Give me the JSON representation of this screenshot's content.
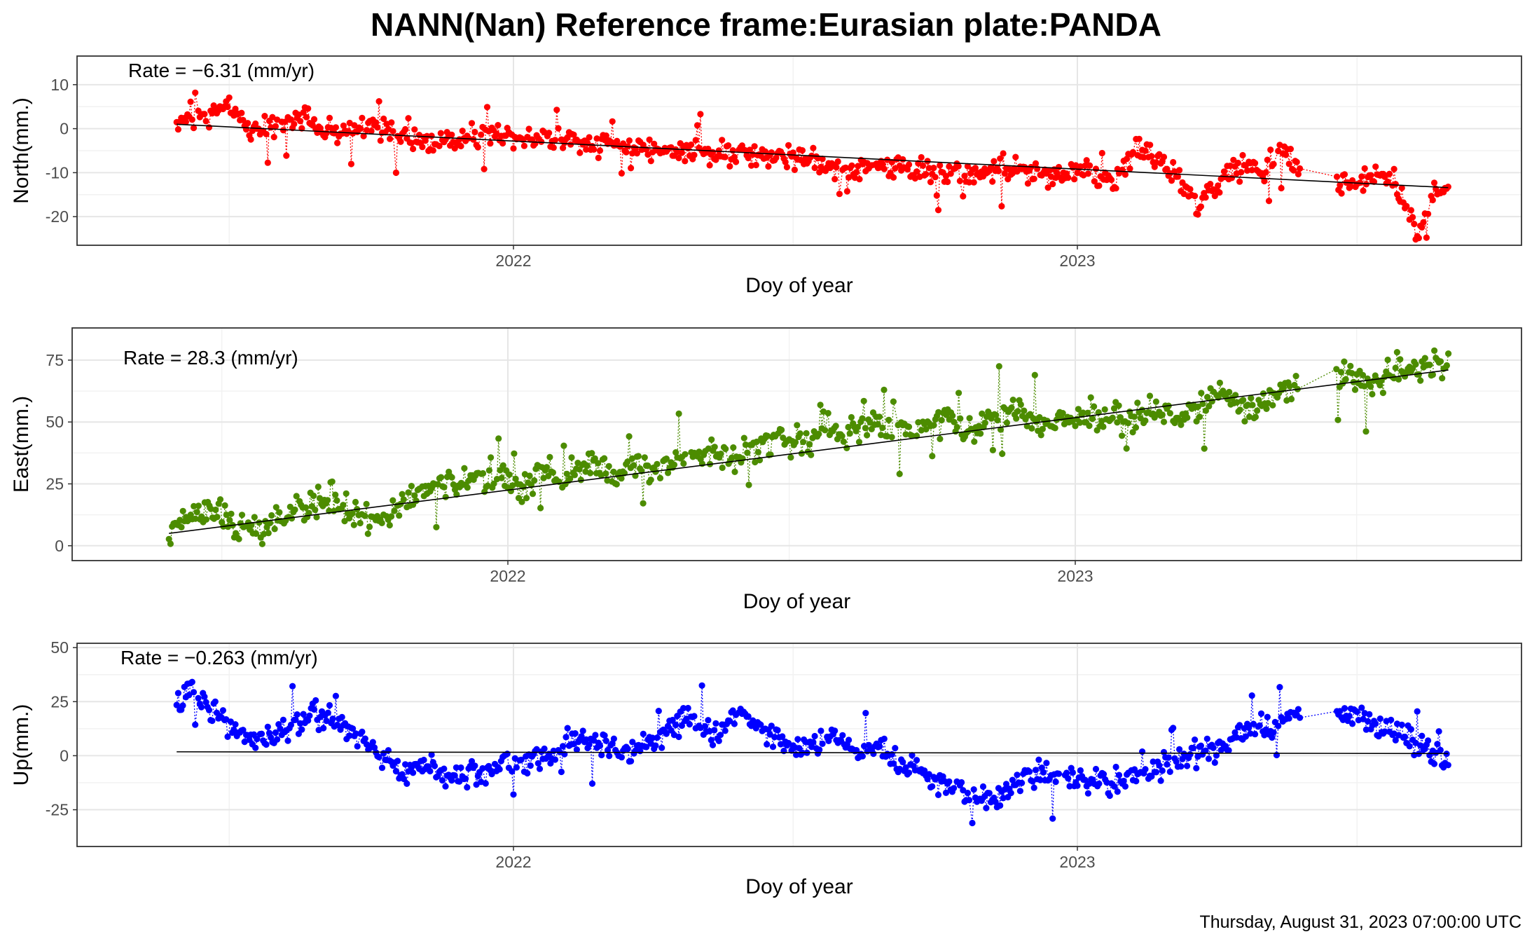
{
  "title": "NANN(Nan) Reference frame:Eurasian plate:PANDA",
  "footer": "Thursday, August 31, 2023 07:00:00 UTC",
  "chart_data": [
    {
      "type": "line",
      "component": "north",
      "ylabel": "North(mm.)",
      "xlabel": "Doy of year",
      "x_tick_labels": [
        "2022",
        "2023"
      ],
      "y_ticks": [
        -20,
        -10,
        0,
        10
      ],
      "ylim": [
        -26.5,
        16.5
      ],
      "rate_label": "Rate = −6.31 (mm/yr)",
      "rate_mm_per_yr": -6.31,
      "point_color": "#ff0000",
      "trend": [
        {
          "x": "2021-05-28",
          "y": 1.0
        },
        {
          "x": "2023-08-29",
          "y": -13.4
        }
      ],
      "series": [
        {
          "values": [
            {
              "x": "2021-05-28",
              "y": 2
            },
            {
              "x": "2021-06-15",
              "y": 3
            },
            {
              "x": "2021-06-28",
              "y": 5
            },
            {
              "x": "2021-07-15",
              "y": 0
            },
            {
              "x": "2021-08-01",
              "y": 1
            },
            {
              "x": "2021-08-20",
              "y": 2
            },
            {
              "x": "2021-09-10",
              "y": -1
            },
            {
              "x": "2021-10-01",
              "y": 1
            },
            {
              "x": "2021-10-20",
              "y": -2
            },
            {
              "x": "2021-11-10",
              "y": -3
            },
            {
              "x": "2021-12-01",
              "y": -2
            },
            {
              "x": "2021-12-25",
              "y": -1
            },
            {
              "x": "2022-01-20",
              "y": -2
            },
            {
              "x": "2022-02-20",
              "y": -3
            },
            {
              "x": "2022-03-15",
              "y": -4
            },
            {
              "x": "2022-04-10",
              "y": -5
            },
            {
              "x": "2022-05-10",
              "y": -5
            },
            {
              "x": "2022-06-10",
              "y": -6
            },
            {
              "x": "2022-07-10",
              "y": -7
            },
            {
              "x": "2022-08-08",
              "y": -10
            },
            {
              "x": "2022-08-20",
              "y": -8
            },
            {
              "x": "2022-09-20",
              "y": -9
            },
            {
              "x": "2022-10-18",
              "y": -10
            },
            {
              "x": "2022-11-15",
              "y": -9
            },
            {
              "x": "2022-12-10",
              "y": -11
            },
            {
              "x": "2023-01-05",
              "y": -9
            },
            {
              "x": "2023-01-25",
              "y": -12
            },
            {
              "x": "2023-02-10",
              "y": -4
            },
            {
              "x": "2023-03-05",
              "y": -10
            },
            {
              "x": "2023-03-20",
              "y": -18
            },
            {
              "x": "2023-04-10",
              "y": -9
            },
            {
              "x": "2023-05-01",
              "y": -10
            },
            {
              "x": "2023-05-12",
              "y": -5
            },
            {
              "x": "2023-05-25",
              "y": -9
            },
            {
              "x": "2023-06-25",
              "y": -13
            },
            {
              "x": "2023-07-10",
              "y": -11
            },
            {
              "x": "2023-07-25",
              "y": -12
            },
            {
              "x": "2023-08-10",
              "y": -25
            },
            {
              "x": "2023-08-20",
              "y": -13
            },
            {
              "x": "2023-08-29",
              "y": -14
            }
          ]
        }
      ]
    },
    {
      "type": "line",
      "component": "east",
      "ylabel": "East(mm.)",
      "xlabel": "Doy of year",
      "x_tick_labels": [
        "2022",
        "2023"
      ],
      "y_ticks": [
        0,
        25,
        50,
        75
      ],
      "ylim": [
        -6,
        88
      ],
      "rate_label": "Rate = 28.3 (mm/yr)",
      "rate_mm_per_yr": 28.3,
      "point_color": "#4c8c00",
      "trend": [
        {
          "x": "2021-05-28",
          "y": 5.0
        },
        {
          "x": "2023-08-29",
          "y": 71.0
        }
      ],
      "series": [
        {
          "values": [
            {
              "x": "2021-05-28",
              "y": 5
            },
            {
              "x": "2021-06-10",
              "y": 12
            },
            {
              "x": "2021-06-25",
              "y": 15
            },
            {
              "x": "2021-07-10",
              "y": 8
            },
            {
              "x": "2021-07-25",
              "y": 5
            },
            {
              "x": "2021-08-10",
              "y": 12
            },
            {
              "x": "2021-08-25",
              "y": 15
            },
            {
              "x": "2021-09-10",
              "y": 20
            },
            {
              "x": "2021-09-25",
              "y": 12
            },
            {
              "x": "2021-10-10",
              "y": 10
            },
            {
              "x": "2021-10-25",
              "y": 18
            },
            {
              "x": "2021-11-10",
              "y": 22
            },
            {
              "x": "2021-11-25",
              "y": 26
            },
            {
              "x": "2021-12-10",
              "y": 25
            },
            {
              "x": "2021-12-25",
              "y": 30
            },
            {
              "x": "2022-01-10",
              "y": 22
            },
            {
              "x": "2022-01-25",
              "y": 30
            },
            {
              "x": "2022-02-10",
              "y": 28
            },
            {
              "x": "2022-02-25",
              "y": 35
            },
            {
              "x": "2022-03-10",
              "y": 28
            },
            {
              "x": "2022-03-25",
              "y": 32
            },
            {
              "x": "2022-04-10",
              "y": 30
            },
            {
              "x": "2022-04-25",
              "y": 36
            },
            {
              "x": "2022-05-10",
              "y": 38
            },
            {
              "x": "2022-05-25",
              "y": 35
            },
            {
              "x": "2022-06-10",
              "y": 40
            },
            {
              "x": "2022-06-25",
              "y": 45
            },
            {
              "x": "2022-07-10",
              "y": 40
            },
            {
              "x": "2022-07-25",
              "y": 48
            },
            {
              "x": "2022-08-10",
              "y": 45
            },
            {
              "x": "2022-08-25",
              "y": 50
            },
            {
              "x": "2022-09-10",
              "y": 44
            },
            {
              "x": "2022-09-25",
              "y": 50
            },
            {
              "x": "2022-10-10",
              "y": 52
            },
            {
              "x": "2022-10-25",
              "y": 46
            },
            {
              "x": "2022-11-10",
              "y": 52
            },
            {
              "x": "2022-11-25",
              "y": 55
            },
            {
              "x": "2022-12-10",
              "y": 50
            },
            {
              "x": "2022-12-25",
              "y": 52
            },
            {
              "x": "2023-01-10",
              "y": 50
            },
            {
              "x": "2023-01-25",
              "y": 54
            },
            {
              "x": "2023-02-10",
              "y": 52
            },
            {
              "x": "2023-02-25",
              "y": 56
            },
            {
              "x": "2023-03-10",
              "y": 52
            },
            {
              "x": "2023-03-25",
              "y": 58
            },
            {
              "x": "2023-04-10",
              "y": 60
            },
            {
              "x": "2023-04-25",
              "y": 56
            },
            {
              "x": "2023-05-10",
              "y": 62
            },
            {
              "x": "2023-05-25",
              "y": 65
            },
            {
              "x": "2023-06-10",
              "y": 68
            },
            {
              "x": "2023-06-25",
              "y": 70
            },
            {
              "x": "2023-07-10",
              "y": 65
            },
            {
              "x": "2023-07-25",
              "y": 72
            },
            {
              "x": "2023-08-10",
              "y": 70
            },
            {
              "x": "2023-08-20",
              "y": 75
            },
            {
              "x": "2023-08-29",
              "y": 72
            }
          ]
        }
      ]
    },
    {
      "type": "line",
      "component": "up",
      "ylabel": "Up(mm.)",
      "xlabel": "Doy of year",
      "x_tick_labels": [
        "2022",
        "2023"
      ],
      "y_ticks": [
        -25,
        0,
        25,
        50
      ],
      "ylim": [
        -42,
        52
      ],
      "rate_label": "Rate = −0.263 (mm/yr)",
      "rate_mm_per_yr": -0.263,
      "point_color": "#0000ff",
      "trend": [
        {
          "x": "2021-05-28",
          "y": 1.8
        },
        {
          "x": "2023-08-29",
          "y": 1.0
        }
      ],
      "series": [
        {
          "values": [
            {
              "x": "2021-05-28",
              "y": 21
            },
            {
              "x": "2021-06-10",
              "y": 30
            },
            {
              "x": "2021-06-25",
              "y": 18
            },
            {
              "x": "2021-07-10",
              "y": 10
            },
            {
              "x": "2021-07-25",
              "y": 8
            },
            {
              "x": "2021-08-10",
              "y": 12
            },
            {
              "x": "2021-08-25",
              "y": 20
            },
            {
              "x": "2021-09-10",
              "y": 15
            },
            {
              "x": "2021-09-25",
              "y": 8
            },
            {
              "x": "2021-10-10",
              "y": -2
            },
            {
              "x": "2021-10-25",
              "y": -8
            },
            {
              "x": "2021-11-10",
              "y": -5
            },
            {
              "x": "2021-11-25",
              "y": -10
            },
            {
              "x": "2021-12-10",
              "y": -8
            },
            {
              "x": "2021-12-25",
              "y": -3
            },
            {
              "x": "2022-01-10",
              "y": -4
            },
            {
              "x": "2022-01-25",
              "y": 0
            },
            {
              "x": "2022-02-10",
              "y": 8
            },
            {
              "x": "2022-02-25",
              "y": 5
            },
            {
              "x": "2022-03-10",
              "y": 2
            },
            {
              "x": "2022-03-25",
              "y": 5
            },
            {
              "x": "2022-04-10",
              "y": 10
            },
            {
              "x": "2022-04-25",
              "y": 18
            },
            {
              "x": "2022-05-10",
              "y": 10
            },
            {
              "x": "2022-05-25",
              "y": 20
            },
            {
              "x": "2022-06-10",
              "y": 12
            },
            {
              "x": "2022-06-25",
              "y": 8
            },
            {
              "x": "2022-07-10",
              "y": 5
            },
            {
              "x": "2022-07-25",
              "y": 10
            },
            {
              "x": "2022-08-10",
              "y": 2
            },
            {
              "x": "2022-08-25",
              "y": 5
            },
            {
              "x": "2022-09-10",
              "y": -5
            },
            {
              "x": "2022-09-25",
              "y": -8
            },
            {
              "x": "2022-10-10",
              "y": -15
            },
            {
              "x": "2022-10-25",
              "y": -20
            },
            {
              "x": "2022-11-10",
              "y": -20
            },
            {
              "x": "2022-11-25",
              "y": -12
            },
            {
              "x": "2022-12-10",
              "y": -8
            },
            {
              "x": "2022-12-25",
              "y": -10
            },
            {
              "x": "2023-01-10",
              "y": -12
            },
            {
              "x": "2023-01-25",
              "y": -12
            },
            {
              "x": "2023-02-10",
              "y": -10
            },
            {
              "x": "2023-02-25",
              "y": -5
            },
            {
              "x": "2023-03-10",
              "y": 0
            },
            {
              "x": "2023-03-25",
              "y": 2
            },
            {
              "x": "2023-04-10",
              "y": 8
            },
            {
              "x": "2023-04-25",
              "y": 12
            },
            {
              "x": "2023-05-10",
              "y": 15
            },
            {
              "x": "2023-05-25",
              "y": 20
            },
            {
              "x": "2023-06-10",
              "y": 18
            },
            {
              "x": "2023-06-25",
              "y": 22
            },
            {
              "x": "2023-07-10",
              "y": 15
            },
            {
              "x": "2023-07-25",
              "y": 12
            },
            {
              "x": "2023-08-10",
              "y": 5
            },
            {
              "x": "2023-08-20",
              "y": 0
            },
            {
              "x": "2023-08-29",
              "y": -5
            }
          ]
        }
      ]
    }
  ]
}
